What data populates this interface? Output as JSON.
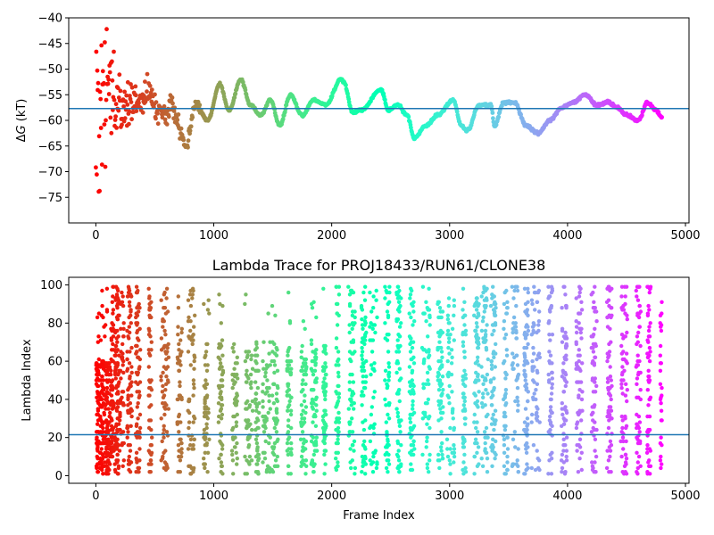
{
  "chart_data": [
    {
      "type": "scatter",
      "title": "",
      "xlabel": "",
      "ylabel": "ΔG (kT)",
      "ylabel_parts": {
        "prefix": "Δ",
        "symbol": "G",
        "suffix": " (kT)"
      },
      "xlim": [
        -230,
        5030
      ],
      "ylim": [
        -80,
        -40
      ],
      "xticks": [
        0,
        1000,
        2000,
        3000,
        4000,
        5000
      ],
      "yticks": [
        -75,
        -70,
        -65,
        -60,
        -55,
        -50,
        -45,
        -40
      ],
      "colormap": "rainbow (reversed: red at frame 0, violet at last frame)",
      "reference_line": {
        "y": -57.7,
        "color": "#1f77b4"
      },
      "trace_keypoints": {
        "x": [
          0,
          60,
          120,
          180,
          250,
          350,
          450,
          560,
          640,
          700,
          760,
          850,
          950,
          1050,
          1130,
          1230,
          1310,
          1400,
          1480,
          1560,
          1650,
          1750,
          1850,
          1950,
          2080,
          2100,
          2180,
          2250,
          2420,
          2480,
          2560,
          2640,
          2700,
          2800,
          2900,
          3030,
          3100,
          3150,
          3250,
          3350,
          3380,
          3460,
          3550,
          3650,
          3750,
          3850,
          3950,
          4050,
          4150,
          4250,
          4350,
          4420,
          4500,
          4600,
          4680,
          4750,
          4800
        ],
        "y": [
          -55,
          -54,
          -53,
          -58,
          -57,
          -56,
          -55,
          -59,
          -57,
          -61,
          -65,
          -57,
          -60,
          -53,
          -58,
          -52,
          -57,
          -59,
          -56,
          -61,
          -55,
          -59,
          -56,
          -57,
          -52,
          -52.5,
          -58.5,
          -58,
          -54,
          -58,
          -57,
          -59,
          -63.5,
          -61,
          -59,
          -56,
          -61,
          -62,
          -57,
          -57,
          -61,
          -56.5,
          -56.5,
          -61,
          -62.5,
          -60,
          -57.5,
          -56.5,
          -55,
          -57,
          -56.5,
          -57.5,
          -59,
          -60,
          -56.5,
          -58,
          -59.5
        ]
      },
      "noise_envelope": "scatter spread wide near frame 0 (roughly -80 to -40) narrowing to a single smooth trace after about frame 1000"
    },
    {
      "type": "scatter",
      "title": "Lambda Trace for PROJ18433/RUN61/CLONE38",
      "xlabel": "Frame Index",
      "ylabel": "Lambda Index",
      "xlim": [
        -230,
        5030
      ],
      "ylim": [
        -4,
        104
      ],
      "xticks": [
        0,
        1000,
        2000,
        3000,
        4000,
        5000
      ],
      "yticks": [
        0,
        20,
        40,
        60,
        80,
        100
      ],
      "colormap": "rainbow (reversed: red at frame 0, violet at last frame)",
      "reference_line": {
        "y": 21.5,
        "color": "#1f77b4"
      },
      "frames": [
        0,
        4800
      ],
      "lambda_range": [
        1,
        99
      ],
      "distribution": "dense random scatter across all lambda values, clustered in vertical columns every ~90-120 frames; near frame 0 points concentrate below 60, sparse upper-range coverage at ~1000-2000"
    }
  ],
  "colors": {
    "reference_line": "#1f77b4",
    "axes": "#000000",
    "background": "#ffffff"
  }
}
